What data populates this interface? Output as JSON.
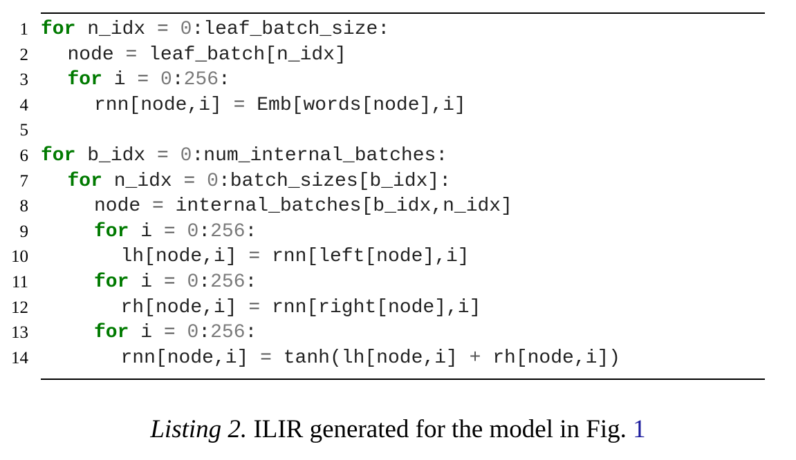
{
  "listing": {
    "lines": [
      {
        "n": "1",
        "indent": 0,
        "tokens": [
          {
            "t": "for",
            "k": "kw"
          },
          {
            "t": " n_idx "
          },
          {
            "t": "=",
            "k": "op"
          },
          {
            "t": " "
          },
          {
            "t": "0",
            "k": "num"
          },
          {
            "t": ":leaf_batch_size:"
          }
        ]
      },
      {
        "n": "2",
        "indent": 1,
        "tokens": [
          {
            "t": "node "
          },
          {
            "t": "=",
            "k": "op"
          },
          {
            "t": " leaf_batch[n_idx]"
          }
        ]
      },
      {
        "n": "3",
        "indent": 1,
        "tokens": [
          {
            "t": "for",
            "k": "kw"
          },
          {
            "t": " i "
          },
          {
            "t": "=",
            "k": "op"
          },
          {
            "t": " "
          },
          {
            "t": "0",
            "k": "num"
          },
          {
            "t": ":"
          },
          {
            "t": "256",
            "k": "num"
          },
          {
            "t": ":"
          }
        ]
      },
      {
        "n": "4",
        "indent": 2,
        "tokens": [
          {
            "t": "rnn[node,i] "
          },
          {
            "t": "=",
            "k": "op"
          },
          {
            "t": " Emb[words[node],i]"
          }
        ]
      },
      {
        "n": "5",
        "indent": 0,
        "tokens": []
      },
      {
        "n": "6",
        "indent": 0,
        "tokens": [
          {
            "t": "for",
            "k": "kw"
          },
          {
            "t": " b_idx "
          },
          {
            "t": "=",
            "k": "op"
          },
          {
            "t": " "
          },
          {
            "t": "0",
            "k": "num"
          },
          {
            "t": ":num_internal_batches:"
          }
        ]
      },
      {
        "n": "7",
        "indent": 1,
        "tokens": [
          {
            "t": "for",
            "k": "kw"
          },
          {
            "t": " n_idx "
          },
          {
            "t": "=",
            "k": "op"
          },
          {
            "t": " "
          },
          {
            "t": "0",
            "k": "num"
          },
          {
            "t": ":batch_sizes[b_idx]:"
          }
        ]
      },
      {
        "n": "8",
        "indent": 2,
        "tokens": [
          {
            "t": "node "
          },
          {
            "t": "=",
            "k": "op"
          },
          {
            "t": " internal_batches[b_idx,n_idx]"
          }
        ]
      },
      {
        "n": "9",
        "indent": 2,
        "tokens": [
          {
            "t": "for",
            "k": "kw"
          },
          {
            "t": " i "
          },
          {
            "t": "=",
            "k": "op"
          },
          {
            "t": " "
          },
          {
            "t": "0",
            "k": "num"
          },
          {
            "t": ":"
          },
          {
            "t": "256",
            "k": "num"
          },
          {
            "t": ":"
          }
        ]
      },
      {
        "n": "10",
        "indent": 3,
        "tokens": [
          {
            "t": "lh[node,i] "
          },
          {
            "t": "=",
            "k": "op"
          },
          {
            "t": " rnn[left[node],i]"
          }
        ]
      },
      {
        "n": "11",
        "indent": 2,
        "tokens": [
          {
            "t": "for",
            "k": "kw"
          },
          {
            "t": " i "
          },
          {
            "t": "=",
            "k": "op"
          },
          {
            "t": " "
          },
          {
            "t": "0",
            "k": "num"
          },
          {
            "t": ":"
          },
          {
            "t": "256",
            "k": "num"
          },
          {
            "t": ":"
          }
        ]
      },
      {
        "n": "12",
        "indent": 3,
        "tokens": [
          {
            "t": "rh[node,i] "
          },
          {
            "t": "=",
            "k": "op"
          },
          {
            "t": " rnn[right[node],i]"
          }
        ]
      },
      {
        "n": "13",
        "indent": 2,
        "tokens": [
          {
            "t": "for",
            "k": "kw"
          },
          {
            "t": " i "
          },
          {
            "t": "=",
            "k": "op"
          },
          {
            "t": " "
          },
          {
            "t": "0",
            "k": "num"
          },
          {
            "t": ":"
          },
          {
            "t": "256",
            "k": "num"
          },
          {
            "t": ":"
          }
        ]
      },
      {
        "n": "14",
        "indent": 3,
        "tokens": [
          {
            "t": "rnn[node,i] "
          },
          {
            "t": "=",
            "k": "op"
          },
          {
            "t": " tanh(lh[node,i] "
          },
          {
            "t": "+",
            "k": "op"
          },
          {
            "t": " rh[node,i])"
          }
        ]
      }
    ]
  },
  "caption": {
    "label": "Listing 2.",
    "text": " ILIR generated for the model in Fig. ",
    "ref": "1"
  },
  "colors": {
    "keyword": "#007a00",
    "number": "#7a7a7a",
    "reference": "#1a1a9c"
  }
}
